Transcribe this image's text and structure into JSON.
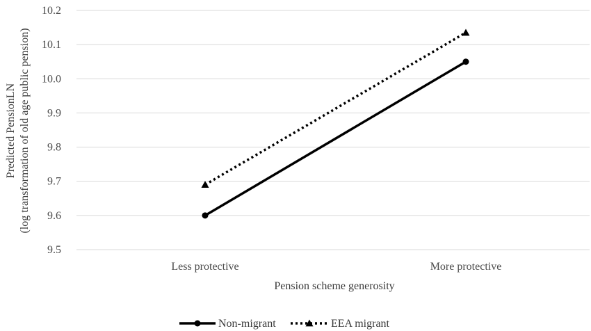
{
  "chart_data": {
    "type": "line",
    "categories": [
      "Less protective",
      "More protective"
    ],
    "series": [
      {
        "name": "Non-migrant",
        "values": [
          9.6,
          10.05
        ],
        "style": "solid",
        "marker": "circle",
        "color": "#000000"
      },
      {
        "name": "EEA migrant",
        "values": [
          9.69,
          10.135
        ],
        "style": "dotted",
        "marker": "triangle",
        "color": "#000000"
      }
    ],
    "xlabel": "Pension scheme generosity",
    "ylabel_lines": [
      "Predicted PensionLN",
      "(log transformation of old age public pension)"
    ],
    "ylim": [
      9.5,
      10.2
    ],
    "yticks": [
      "9.5",
      "9.6",
      "9.7",
      "9.8",
      "9.9",
      "10.0",
      "10.1",
      "10.2"
    ],
    "grid": true,
    "legend_position": "bottom"
  }
}
